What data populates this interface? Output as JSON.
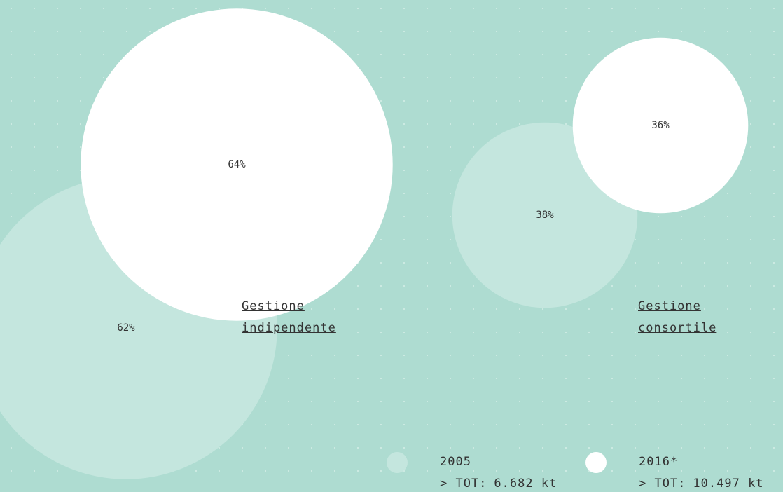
{
  "chart_data": {
    "type": "bubble",
    "categories": [
      "Gestione indipendente",
      "Gestione consortile"
    ],
    "total_prefix": "> TOT:",
    "series": [
      {
        "name": "2005",
        "color": "#c4e6de",
        "values": [
          62,
          38
        ],
        "value_labels": [
          "62%",
          "38%"
        ],
        "total": "6.682 kt"
      },
      {
        "name": "2016*",
        "color": "#ffffff",
        "values": [
          64,
          36
        ],
        "value_labels": [
          "64%",
          "36%"
        ],
        "total": "10.497 kt"
      }
    ]
  }
}
